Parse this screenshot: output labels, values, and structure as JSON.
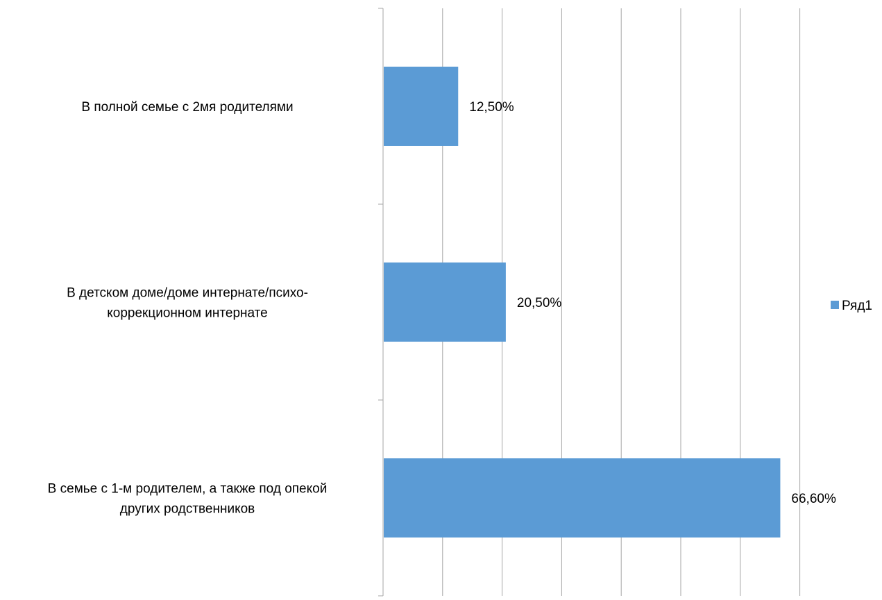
{
  "chart_data": {
    "type": "bar",
    "orientation": "horizontal",
    "categories": [
      [
        "В полной семье с 2мя родителями"
      ],
      [
        "В детском доме/доме интернате/психо-",
        "коррекционном интернате"
      ],
      [
        "В семье с 1-м родителем, а также под опекой",
        "других родственников"
      ]
    ],
    "series": [
      {
        "name": "Ряд1",
        "values": [
          12.5,
          20.5,
          66.6
        ],
        "labels": [
          "12,50%",
          "20,50%",
          "66,60%"
        ]
      }
    ],
    "xlim": [
      0,
      70
    ],
    "x_gridline_step": 10,
    "grid": "vertical",
    "legend_position": "right",
    "colors": {
      "bar": "#5B9BD5",
      "grid": "#A6A6A6",
      "axis": "#A6A6A6",
      "text": "#000000"
    }
  }
}
